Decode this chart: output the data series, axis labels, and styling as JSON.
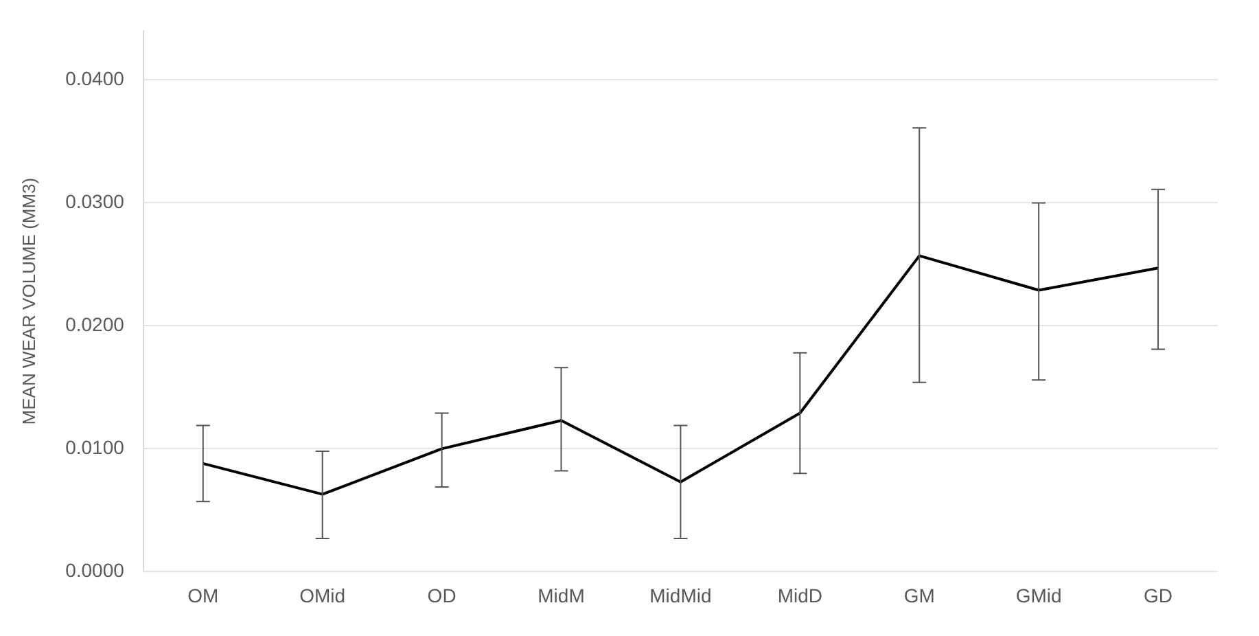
{
  "chart_data": {
    "type": "line",
    "ylabel": "MEAN WEAR VOLUME (MM3)",
    "categories": [
      "OM",
      "OMid",
      "OD",
      "MidM",
      "MidMid",
      "MidD",
      "GM",
      "GMid",
      "GD"
    ],
    "series": [
      {
        "color": "#000000",
        "values": [
          0.0088,
          0.0063,
          0.01,
          0.0123,
          0.0073,
          0.0129,
          0.0257,
          0.0229,
          0.0247
        ],
        "errors": [
          [
            0.0057,
            0.0119
          ],
          [
            0.0027,
            0.0098
          ],
          [
            0.0069,
            0.0129
          ],
          [
            0.0082,
            0.0166
          ],
          [
            0.0027,
            0.0119
          ],
          [
            0.008,
            0.0178
          ],
          [
            0.0154,
            0.0361
          ],
          [
            0.0156,
            0.03
          ],
          [
            0.0181,
            0.0311
          ]
        ]
      }
    ],
    "ylim": [
      0,
      0.044
    ],
    "yticks": [
      {
        "value": 0,
        "label": "0.0000"
      },
      {
        "value": 0.01,
        "label": "0.0100"
      },
      {
        "value": 0.02,
        "label": "0.0200"
      },
      {
        "value": 0.03,
        "label": "0.0300"
      },
      {
        "value": 0.04,
        "label": "0.0400"
      }
    ],
    "grid": "y",
    "legend": false,
    "marker": "none",
    "line_style": "solid"
  }
}
